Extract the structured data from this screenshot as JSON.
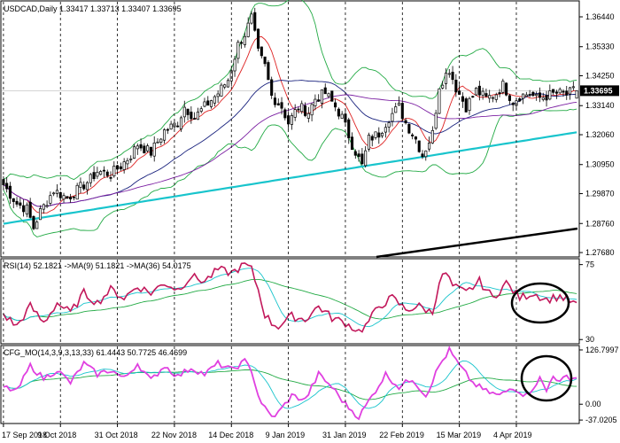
{
  "chart_data": [
    {
      "type": "candlestick",
      "panel": "price",
      "title": "USDCAD,Daily  1.33417 1.33713 1.33407 1.33695",
      "symbol": "USDCAD",
      "timeframe": "Daily",
      "ohlc_header": {
        "open": 1.33417,
        "high": 1.33713,
        "low": 1.33407,
        "close": 1.33695
      },
      "current_price": "1.33695",
      "ylim": [
        1.2755,
        1.37
      ],
      "y_ticks": [
        "1.36440",
        "1.35330",
        "1.34250",
        "1.33140",
        "1.32060",
        "1.30950",
        "1.29870",
        "1.28760",
        "1.27680"
      ],
      "x_ticks": [
        "17 Sep 2018",
        "9 Oct 2018",
        "31 Oct 2018",
        "22 Nov 2018",
        "14 Dec 2018",
        "9 Jan 2019",
        "31 Jan 2019",
        "22 Feb 2019",
        "15 Mar 2019",
        "4 Apr 2019"
      ],
      "close_path": [
        [
          0,
          1.302
        ],
        [
          4,
          1.295
        ],
        [
          7,
          1.293
        ],
        [
          9,
          1.286
        ],
        [
          11,
          1.292
        ],
        [
          15,
          1.3
        ],
        [
          19,
          1.297
        ],
        [
          22,
          1.3
        ],
        [
          26,
          1.304
        ],
        [
          28,
          1.307
        ],
        [
          32,
          1.306
        ],
        [
          35,
          1.309
        ],
        [
          38,
          1.313
        ],
        [
          40,
          1.317
        ],
        [
          44,
          1.314
        ],
        [
          48,
          1.322
        ],
        [
          52,
          1.325
        ],
        [
          54,
          1.331
        ],
        [
          57,
          1.327
        ],
        [
          60,
          1.331
        ],
        [
          64,
          1.336
        ],
        [
          67,
          1.341
        ],
        [
          70,
          1.354
        ],
        [
          72,
          1.358
        ],
        [
          74,
          1.364
        ],
        [
          76,
          1.351
        ],
        [
          78,
          1.346
        ],
        [
          80,
          1.335
        ],
        [
          83,
          1.331
        ],
        [
          85,
          1.325
        ],
        [
          88,
          1.331
        ],
        [
          91,
          1.329
        ],
        [
          93,
          1.334
        ],
        [
          96,
          1.336
        ],
        [
          99,
          1.331
        ],
        [
          101,
          1.327
        ],
        [
          104,
          1.317
        ],
        [
          107,
          1.309
        ],
        [
          109,
          1.319
        ],
        [
          112,
          1.321
        ],
        [
          115,
          1.327
        ],
        [
          118,
          1.331
        ],
        [
          120,
          1.325
        ],
        [
          123,
          1.319
        ],
        [
          125,
          1.313
        ],
        [
          128,
          1.321
        ],
        [
          130,
          1.339
        ],
        [
          133,
          1.345
        ],
        [
          135,
          1.338
        ],
        [
          138,
          1.331
        ],
        [
          141,
          1.337
        ],
        [
          144,
          1.334
        ],
        [
          147,
          1.336
        ],
        [
          149,
          1.339
        ],
        [
          152,
          1.333
        ],
        [
          154,
          1.335
        ],
        [
          157,
          1.336
        ],
        [
          159,
          1.334
        ],
        [
          162,
          1.335
        ],
        [
          165,
          1.336
        ],
        [
          168,
          1.3355
        ],
        [
          170,
          1.3369
        ]
      ],
      "indicators": [
        {
          "name": "Bollinger Bands",
          "color": "#22aa44"
        },
        {
          "name": "MA fast",
          "color": "#dd2222"
        },
        {
          "name": "MA mid",
          "color": "#1a237e"
        },
        {
          "name": "MA slow",
          "color": "#7b1fa2"
        },
        {
          "name": "MA long",
          "color": "#18c4cc"
        }
      ]
    },
    {
      "type": "line",
      "panel": "rsi",
      "title": "RSI(14) 52.1821  ->MA(9) 51.1821  ->MA(36) 54.0175",
      "ylim": [
        28,
        78
      ],
      "y_ticks": [
        "75",
        "30"
      ],
      "series": [
        {
          "name": "RSI(14)",
          "last": 52.1821,
          "color": "#c2185b"
        },
        {
          "name": "MA(9)",
          "last": 51.1821,
          "color": "#18c4cc"
        },
        {
          "name": "MA(36)",
          "last": 54.0175,
          "color": "#22aa44"
        }
      ],
      "rsi_path": [
        [
          0,
          45
        ],
        [
          4,
          38
        ],
        [
          8,
          50
        ],
        [
          12,
          40
        ],
        [
          16,
          52
        ],
        [
          20,
          46
        ],
        [
          24,
          58
        ],
        [
          28,
          52
        ],
        [
          32,
          60
        ],
        [
          36,
          55
        ],
        [
          40,
          62
        ],
        [
          44,
          58
        ],
        [
          48,
          64
        ],
        [
          52,
          60
        ],
        [
          56,
          68
        ],
        [
          60,
          65
        ],
        [
          64,
          72
        ],
        [
          68,
          70
        ],
        [
          72,
          75
        ],
        [
          74,
          72
        ],
        [
          76,
          60
        ],
        [
          78,
          45
        ],
        [
          80,
          40
        ],
        [
          82,
          38
        ],
        [
          86,
          44
        ],
        [
          90,
          42
        ],
        [
          94,
          50
        ],
        [
          98,
          43
        ],
        [
          102,
          40
        ],
        [
          106,
          35
        ],
        [
          108,
          38
        ],
        [
          112,
          50
        ],
        [
          116,
          55
        ],
        [
          120,
          48
        ],
        [
          124,
          50
        ],
        [
          128,
          46
        ],
        [
          130,
          65
        ],
        [
          132,
          70
        ],
        [
          134,
          62
        ],
        [
          138,
          58
        ],
        [
          142,
          65
        ],
        [
          146,
          55
        ],
        [
          150,
          64
        ],
        [
          154,
          55
        ],
        [
          158,
          58
        ],
        [
          162,
          54
        ],
        [
          166,
          56
        ],
        [
          170,
          52
        ]
      ],
      "annotation": "circle"
    },
    {
      "type": "line",
      "panel": "oscillator",
      "title": "CFG_MO(14,3,9,3,13,33) 61.4443 50.7725 46.4699",
      "ylim": [
        -43,
        135
      ],
      "y_ticks": [
        "126.7997",
        "0.00",
        "-37.0205"
      ],
      "series": [
        {
          "name": "CFG_MO",
          "last": 61.4443,
          "color": "#e040e0"
        },
        {
          "name": "signal",
          "last": 50.7725,
          "color": "#18c4cc"
        },
        {
          "name": "slow",
          "last": 46.4699,
          "color": "#22aa44"
        }
      ],
      "osc_path": [
        [
          0,
          40
        ],
        [
          4,
          30
        ],
        [
          8,
          90
        ],
        [
          12,
          60
        ],
        [
          16,
          80
        ],
        [
          20,
          50
        ],
        [
          24,
          95
        ],
        [
          28,
          70
        ],
        [
          32,
          80
        ],
        [
          36,
          60
        ],
        [
          40,
          95
        ],
        [
          44,
          55
        ],
        [
          48,
          90
        ],
        [
          52,
          65
        ],
        [
          56,
          85
        ],
        [
          60,
          70
        ],
        [
          64,
          95
        ],
        [
          68,
          80
        ],
        [
          72,
          100
        ],
        [
          74,
          80
        ],
        [
          76,
          20
        ],
        [
          78,
          -10
        ],
        [
          80,
          -30
        ],
        [
          82,
          -20
        ],
        [
          86,
          20
        ],
        [
          90,
          10
        ],
        [
          94,
          70
        ],
        [
          98,
          40
        ],
        [
          102,
          0
        ],
        [
          106,
          -30
        ],
        [
          110,
          20
        ],
        [
          114,
          70
        ],
        [
          118,
          40
        ],
        [
          122,
          60
        ],
        [
          126,
          20
        ],
        [
          130,
          90
        ],
        [
          133,
          126
        ],
        [
          136,
          90
        ],
        [
          140,
          50
        ],
        [
          144,
          30
        ],
        [
          148,
          20
        ],
        [
          152,
          40
        ],
        [
          156,
          20
        ],
        [
          160,
          60
        ],
        [
          162,
          30
        ],
        [
          164,
          70
        ],
        [
          166,
          50
        ],
        [
          168,
          65
        ],
        [
          170,
          61
        ]
      ],
      "annotation": "circle"
    }
  ]
}
